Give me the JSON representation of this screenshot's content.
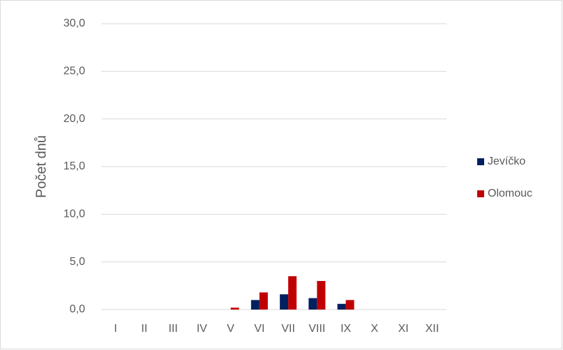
{
  "chart_data": {
    "type": "bar",
    "y_label": "Počet dnů",
    "categories": [
      "I",
      "II",
      "III",
      "IV",
      "V",
      "VI",
      "VII",
      "VIII",
      "IX",
      "X",
      "XI",
      "XII"
    ],
    "series": [
      {
        "name": "Jevíčko",
        "color": "#002060",
        "values": [
          0,
          0,
          0,
          0,
          0,
          1.0,
          1.6,
          1.2,
          0.6,
          0,
          0,
          0
        ]
      },
      {
        "name": "Olomouc",
        "color": "#c00000",
        "values": [
          0,
          0,
          0,
          0,
          0.2,
          1.8,
          3.5,
          3.0,
          1.0,
          0,
          0,
          0
        ]
      }
    ],
    "ylim": [
      0,
      30
    ],
    "yticks": [
      {
        "value": 0,
        "label": "0,0"
      },
      {
        "value": 5,
        "label": "5,0"
      },
      {
        "value": 10,
        "label": "10,0"
      },
      {
        "value": 15,
        "label": "15,0"
      },
      {
        "value": 20,
        "label": "20,0"
      },
      {
        "value": 25,
        "label": "25,0"
      },
      {
        "value": 30,
        "label": "30,0"
      }
    ],
    "grid": true,
    "legend": "right"
  }
}
